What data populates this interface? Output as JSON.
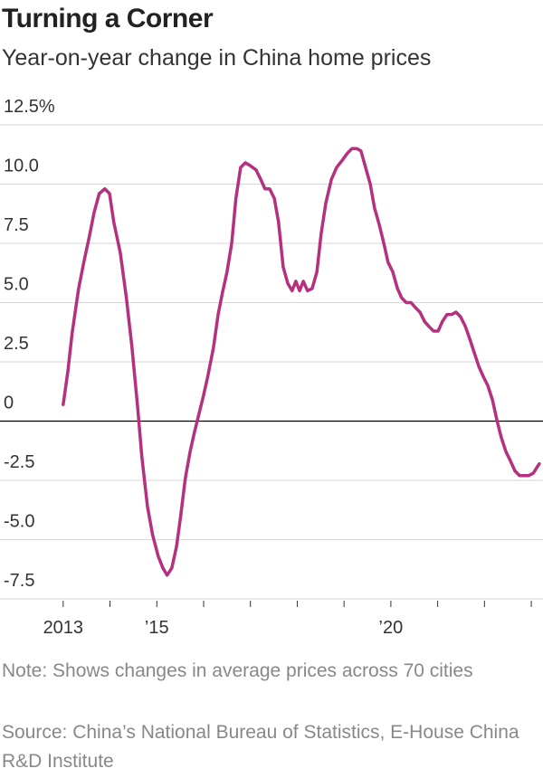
{
  "chart_data": {
    "type": "line",
    "title": "Turning a Corner",
    "subtitle": "Year-on-year change in China home prices",
    "notes": [
      "Note: Shows changes in average prices across 70 cities",
      "Source: China’s National Bureau of Statistics, E-House China R&D Institute"
    ],
    "x": [
      2013.0,
      2013.1,
      2013.19,
      2013.33,
      2013.44,
      2013.56,
      2013.66,
      2013.77,
      2013.89,
      2013.99,
      2014.08,
      2014.22,
      2014.35,
      2014.47,
      2014.59,
      2014.68,
      2014.8,
      2014.91,
      2015.03,
      2015.13,
      2015.22,
      2015.32,
      2015.42,
      2015.51,
      2015.61,
      2015.71,
      2015.8,
      2015.9,
      2016.0,
      2016.09,
      2016.21,
      2016.31,
      2016.4,
      2016.5,
      2016.6,
      2016.69,
      2016.79,
      2016.89,
      2016.98,
      2017.12,
      2017.22,
      2017.31,
      2017.41,
      2017.51,
      2017.6,
      2017.7,
      2017.8,
      2017.89,
      2017.97,
      2018.05,
      2018.13,
      2018.22,
      2018.32,
      2018.42,
      2018.51,
      2018.61,
      2018.73,
      2018.84,
      2018.96,
      2019.07,
      2019.17,
      2019.27,
      2019.36,
      2019.46,
      2019.56,
      2019.65,
      2019.75,
      2019.85,
      2019.94,
      2020.04,
      2020.14,
      2020.23,
      2020.33,
      2020.43,
      2020.52,
      2020.62,
      2020.72,
      2020.81,
      2020.91,
      2021.01,
      2021.1,
      2021.2,
      2021.3,
      2021.39,
      2021.49,
      2021.59,
      2021.68,
      2021.78,
      2021.88,
      2021.97,
      2022.07,
      2022.17,
      2022.27,
      2022.36,
      2022.46,
      2022.56,
      2022.65,
      2022.75,
      2022.85,
      2022.94,
      2023.04,
      2023.17
    ],
    "values": [
      0.7,
      2.1,
      3.7,
      5.6,
      6.7,
      7.8,
      8.8,
      9.6,
      9.8,
      9.6,
      8.4,
      7.1,
      5.2,
      3.1,
      0.6,
      -1.5,
      -3.6,
      -4.8,
      -5.7,
      -6.2,
      -6.5,
      -6.2,
      -5.3,
      -4.0,
      -2.4,
      -1.3,
      -0.5,
      0.3,
      1.1,
      1.9,
      3.1,
      4.5,
      5.4,
      6.3,
      7.5,
      9.4,
      10.7,
      10.9,
      10.8,
      10.6,
      10.2,
      9.8,
      9.8,
      9.4,
      8.4,
      6.5,
      5.8,
      5.5,
      5.9,
      5.5,
      5.9,
      5.5,
      5.6,
      6.3,
      7.9,
      9.2,
      10.2,
      10.7,
      11.0,
      11.3,
      11.5,
      11.5,
      11.4,
      10.7,
      10.0,
      9.0,
      8.3,
      7.5,
      6.7,
      6.3,
      5.6,
      5.2,
      5.0,
      5.0,
      4.8,
      4.6,
      4.2,
      4.0,
      3.8,
      3.8,
      4.2,
      4.5,
      4.5,
      4.6,
      4.4,
      4.0,
      3.5,
      2.9,
      2.3,
      1.9,
      1.5,
      0.9,
      0.0,
      -0.7,
      -1.3,
      -1.7,
      -2.1,
      -2.3,
      -2.3,
      -2.3,
      -2.2,
      -1.8
    ],
    "color": "#b5307f",
    "xlim": [
      2011.65,
      2023.25
    ],
    "xticks": [
      2013,
      {
        "value": 2015,
        "label": "’15"
      },
      {
        "value": 2020,
        "label": "’20"
      }
    ],
    "xminor_ticks": [
      2014,
      2016,
      2017,
      2018,
      2019,
      2021,
      2022,
      2023
    ],
    "ylim": [
      -7.5,
      12.5
    ],
    "yticks": [
      {
        "value": 12.5,
        "label": "12.5%"
      },
      {
        "value": 10,
        "label": "10.0"
      },
      7.5,
      {
        "value": 5,
        "label": "5.0"
      },
      2.5,
      0,
      -2.5,
      {
        "value": -5,
        "label": "-5.0"
      },
      -7.5
    ],
    "grid": true,
    "zero_line": true
  }
}
